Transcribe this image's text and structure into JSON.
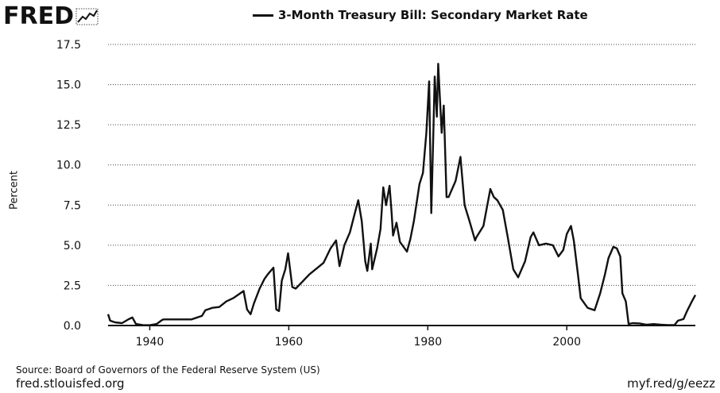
{
  "logo": {
    "text": "FRED",
    "icon": "fred-chart-mark-icon"
  },
  "chart_data": {
    "type": "line",
    "title": "3-Month Treasury Bill: Secondary Market Rate",
    "xlabel": "",
    "ylabel": "Percent",
    "xlim": [
      1934,
      2018.5
    ],
    "ylim": [
      0,
      17.5
    ],
    "x_ticks": [
      1940,
      1960,
      1980,
      2000
    ],
    "x_tick_labels": [
      "1940",
      "1960",
      "1980",
      "2000"
    ],
    "y_ticks": [
      0,
      2.5,
      5,
      7.5,
      10,
      12.5,
      15,
      17.5
    ],
    "y_tick_labels": [
      "0.0",
      "2.5",
      "5.0",
      "7.5",
      "10.0",
      "12.5",
      "15.0",
      "17.5"
    ],
    "grid": true,
    "legend_position": "top",
    "series": [
      {
        "name": "3-Month Treasury Bill: Secondary Market Rate",
        "color": "#111111",
        "points": [
          [
            1934.0,
            0.7
          ],
          [
            1934.3,
            0.3
          ],
          [
            1935.0,
            0.2
          ],
          [
            1936.0,
            0.15
          ],
          [
            1937.0,
            0.4
          ],
          [
            1937.5,
            0.5
          ],
          [
            1938.0,
            0.1
          ],
          [
            1939.0,
            0.03
          ],
          [
            1940.0,
            0.02
          ],
          [
            1941.0,
            0.1
          ],
          [
            1941.8,
            0.35
          ],
          [
            1942.0,
            0.38
          ],
          [
            1946.0,
            0.38
          ],
          [
            1947.5,
            0.6
          ],
          [
            1948.0,
            0.95
          ],
          [
            1949.0,
            1.1
          ],
          [
            1950.0,
            1.15
          ],
          [
            1951.0,
            1.5
          ],
          [
            1952.0,
            1.7
          ],
          [
            1953.0,
            2.0
          ],
          [
            1953.5,
            2.15
          ],
          [
            1954.0,
            1.0
          ],
          [
            1954.5,
            0.7
          ],
          [
            1955.0,
            1.4
          ],
          [
            1955.8,
            2.3
          ],
          [
            1956.5,
            2.9
          ],
          [
            1957.0,
            3.2
          ],
          [
            1957.8,
            3.6
          ],
          [
            1958.2,
            1.0
          ],
          [
            1958.6,
            0.9
          ],
          [
            1959.0,
            2.8
          ],
          [
            1959.5,
            3.5
          ],
          [
            1959.9,
            4.5
          ],
          [
            1960.5,
            2.4
          ],
          [
            1961.0,
            2.3
          ],
          [
            1962.0,
            2.75
          ],
          [
            1963.0,
            3.2
          ],
          [
            1964.0,
            3.55
          ],
          [
            1965.0,
            3.9
          ],
          [
            1966.0,
            4.8
          ],
          [
            1966.8,
            5.3
          ],
          [
            1967.3,
            3.7
          ],
          [
            1968.0,
            5.0
          ],
          [
            1968.8,
            5.8
          ],
          [
            1969.5,
            7.0
          ],
          [
            1970.0,
            7.8
          ],
          [
            1970.5,
            6.5
          ],
          [
            1971.0,
            4.0
          ],
          [
            1971.3,
            3.4
          ],
          [
            1971.8,
            5.1
          ],
          [
            1972.0,
            3.5
          ],
          [
            1972.7,
            4.8
          ],
          [
            1973.2,
            6.0
          ],
          [
            1973.6,
            8.6
          ],
          [
            1974.0,
            7.5
          ],
          [
            1974.5,
            8.7
          ],
          [
            1974.8,
            7.0
          ],
          [
            1975.0,
            5.6
          ],
          [
            1975.5,
            6.4
          ],
          [
            1976.0,
            5.2
          ],
          [
            1977.0,
            4.6
          ],
          [
            1977.5,
            5.4
          ],
          [
            1978.0,
            6.5
          ],
          [
            1978.8,
            8.8
          ],
          [
            1979.3,
            9.5
          ],
          [
            1979.8,
            12.0
          ],
          [
            1980.2,
            15.2
          ],
          [
            1980.5,
            7.0
          ],
          [
            1980.8,
            12.0
          ],
          [
            1981.0,
            15.5
          ],
          [
            1981.3,
            13.0
          ],
          [
            1981.5,
            16.3
          ],
          [
            1981.7,
            14.5
          ],
          [
            1982.0,
            12.0
          ],
          [
            1982.3,
            13.7
          ],
          [
            1982.7,
            8.0
          ],
          [
            1983.0,
            8.0
          ],
          [
            1984.0,
            9.0
          ],
          [
            1984.7,
            10.5
          ],
          [
            1985.3,
            7.5
          ],
          [
            1986.0,
            6.5
          ],
          [
            1986.8,
            5.3
          ],
          [
            1987.0,
            5.5
          ],
          [
            1988.0,
            6.2
          ],
          [
            1989.0,
            8.5
          ],
          [
            1989.5,
            8.0
          ],
          [
            1990.0,
            7.8
          ],
          [
            1990.8,
            7.2
          ],
          [
            1991.5,
            5.5
          ],
          [
            1992.3,
            3.5
          ],
          [
            1993.0,
            3.0
          ],
          [
            1994.0,
            4.0
          ],
          [
            1994.8,
            5.5
          ],
          [
            1995.2,
            5.8
          ],
          [
            1996.0,
            5.0
          ],
          [
            1997.0,
            5.1
          ],
          [
            1998.0,
            5.0
          ],
          [
            1998.8,
            4.3
          ],
          [
            1999.5,
            4.7
          ],
          [
            2000.0,
            5.7
          ],
          [
            2000.6,
            6.2
          ],
          [
            2001.0,
            5.3
          ],
          [
            2001.6,
            3.2
          ],
          [
            2002.0,
            1.7
          ],
          [
            2003.0,
            1.1
          ],
          [
            2004.0,
            0.95
          ],
          [
            2004.8,
            2.0
          ],
          [
            2005.5,
            3.2
          ],
          [
            2006.0,
            4.2
          ],
          [
            2006.7,
            4.9
          ],
          [
            2007.2,
            4.8
          ],
          [
            2007.7,
            4.3
          ],
          [
            2008.0,
            2.0
          ],
          [
            2008.5,
            1.5
          ],
          [
            2008.9,
            0.1
          ],
          [
            2009.5,
            0.15
          ],
          [
            2010.5,
            0.13
          ],
          [
            2011.5,
            0.05
          ],
          [
            2012.5,
            0.09
          ],
          [
            2013.5,
            0.05
          ],
          [
            2014.5,
            0.03
          ],
          [
            2015.5,
            0.03
          ],
          [
            2016.0,
            0.3
          ],
          [
            2016.8,
            0.4
          ],
          [
            2017.3,
            0.9
          ],
          [
            2018.0,
            1.5
          ],
          [
            2018.5,
            1.9
          ]
        ]
      }
    ]
  },
  "footer": {
    "source": "Source: Board of Governors of the Federal Reserve System (US)",
    "site": "fred.stlouisfed.org",
    "shortlink": "myf.red/g/eezz"
  }
}
